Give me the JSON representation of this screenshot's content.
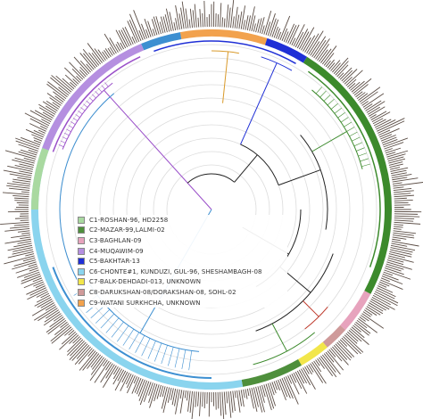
{
  "legend": {
    "items": [
      {
        "label": "C1-ROSHAN-96, HD2258",
        "color": "#a9d9a0"
      },
      {
        "label": "C2-MAZAR-99,LALMI-02",
        "color": "#4e8f3c"
      },
      {
        "label": "C3-BAGHLAN-09",
        "color": "#e7a3bd"
      },
      {
        "label": "C4-MUQAWIM-09",
        "color": "#b58fe0"
      },
      {
        "label": "C5-BAKHTAR-13",
        "color": "#1f2fd6"
      },
      {
        "label": "C6-CHONTE#1, KUNDUZI, GUL-96, SHESHAMBAGH-08",
        "color": "#8ad4ee"
      },
      {
        "label": "C7-BALK-DEHDADI-013, UNKNOWN",
        "color": "#f2e64a"
      },
      {
        "label": "C8-DARUKSHAN-08/DORAKSHAN-08, SOHL-02",
        "color": "#cf9a9a"
      },
      {
        "label": "C9-WATANI SURKHCHA, UNKNOWN",
        "color": "#f2a24d"
      }
    ]
  },
  "colors": {
    "bars": "#5b4d45",
    "rings": "#dcdcdc",
    "c1": "#a9d9a0",
    "c2": "#4e8f3c",
    "c2_branch": "#3c8a2c",
    "c3": "#e7a3bd",
    "c4": "#b58fe0",
    "c4_branch": "#9a4fc9",
    "c5": "#1f2fd6",
    "c6": "#8ad4ee",
    "c6_branch": "#3d8fd1",
    "c7": "#f2e64a",
    "c8": "#cf9a9a",
    "c8_branch": "#c0392b",
    "c9": "#f2a24d",
    "c9_branch": "#d99a2b"
  }
}
